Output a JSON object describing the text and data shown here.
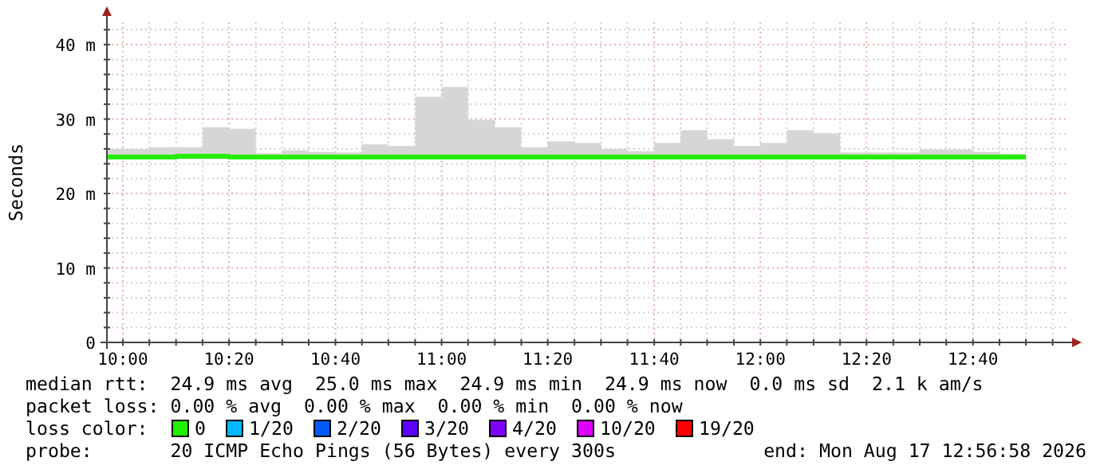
{
  "chart_data": {
    "type": "step",
    "ylabel": "Seconds",
    "legend_title": "loss color:",
    "legend": "bottom",
    "grid": true,
    "xlim": [
      9.95,
      12.958
    ],
    "ylim": [
      0,
      43
    ],
    "xticks": [
      {
        "value": 10,
        "label": "10:00"
      },
      {
        "value": 10.083,
        "label": null
      },
      {
        "value": 10.167,
        "label": null
      },
      {
        "value": 10.25,
        "label": null
      },
      {
        "value": 10.333,
        "label": "10:20"
      },
      {
        "value": 10.417,
        "label": null
      },
      {
        "value": 10.5,
        "label": null
      },
      {
        "value": 10.583,
        "label": null
      },
      {
        "value": 10.667,
        "label": "10:40"
      },
      {
        "value": 10.75,
        "label": null
      },
      {
        "value": 10.833,
        "label": null
      },
      {
        "value": 10.917,
        "label": null
      },
      {
        "value": 11,
        "label": "11:00"
      },
      {
        "value": 11.083,
        "label": null
      },
      {
        "value": 11.167,
        "label": null
      },
      {
        "value": 11.25,
        "label": null
      },
      {
        "value": 11.333,
        "label": "11:20"
      },
      {
        "value": 11.417,
        "label": null
      },
      {
        "value": 11.5,
        "label": null
      },
      {
        "value": 11.583,
        "label": null
      },
      {
        "value": 11.667,
        "label": "11:40"
      },
      {
        "value": 11.75,
        "label": null
      },
      {
        "value": 11.833,
        "label": null
      },
      {
        "value": 11.917,
        "label": null
      },
      {
        "value": 12,
        "label": "12:00"
      },
      {
        "value": 12.083,
        "label": null
      },
      {
        "value": 12.167,
        "label": null
      },
      {
        "value": 12.25,
        "label": null
      },
      {
        "value": 12.333,
        "label": "12:20"
      },
      {
        "value": 12.417,
        "label": null
      },
      {
        "value": 12.5,
        "label": null
      },
      {
        "value": 12.583,
        "label": null
      },
      {
        "value": 12.667,
        "label": "12:40"
      },
      {
        "value": 12.75,
        "label": null
      },
      {
        "value": 12.833,
        "label": null
      },
      {
        "value": 12.917,
        "label": null
      }
    ],
    "yticks": [
      0,
      {
        "value": 2,
        "label": null
      },
      {
        "value": 4,
        "label": null
      },
      {
        "value": 6,
        "label": null
      },
      {
        "value": 8,
        "label": null
      },
      {
        "value": 10,
        "label": "10 m"
      },
      {
        "value": 12,
        "label": null
      },
      {
        "value": 14,
        "label": null
      },
      {
        "value": 16,
        "label": null
      },
      {
        "value": 18,
        "label": null
      },
      {
        "value": 20,
        "label": "20 m"
      },
      {
        "value": 22,
        "label": null
      },
      {
        "value": 24,
        "label": null
      },
      {
        "value": 26,
        "label": null
      },
      {
        "value": 28,
        "label": null
      },
      {
        "value": 30,
        "label": "30 m"
      },
      {
        "value": 32,
        "label": null
      },
      {
        "value": 34,
        "label": null
      },
      {
        "value": 36,
        "label": null
      },
      {
        "value": 38,
        "label": null
      },
      {
        "value": 40,
        "label": "40 m"
      },
      {
        "value": 42,
        "label": null
      }
    ],
    "x": [
      9.95,
      10.083,
      10.167,
      10.25,
      10.333,
      10.417,
      10.5,
      10.583,
      10.667,
      10.75,
      10.833,
      10.917,
      11,
      11.083,
      11.167,
      11.25,
      11.333,
      11.417,
      11.5,
      11.583,
      11.667,
      11.75,
      11.833,
      11.917,
      12,
      12.083,
      12.167,
      12.25,
      12.333,
      12.417,
      12.5,
      12.583,
      12.667,
      12.75,
      12.833
    ],
    "series": [
      {
        "name": "0",
        "color": "#22ee00",
        "values": [
          24.9,
          24.9,
          25.0,
          25.0,
          24.9,
          24.9,
          24.9,
          24.9,
          24.9,
          24.9,
          24.9,
          24.9,
          24.9,
          24.9,
          24.9,
          24.9,
          24.9,
          24.9,
          24.9,
          24.9,
          24.9,
          24.9,
          24.9,
          24.9,
          24.9,
          24.9,
          24.9,
          24.9,
          24.9,
          24.9,
          24.9,
          24.9,
          24.9,
          24.9,
          24.9
        ],
        "lower": [
          24.6,
          24.6,
          24.6,
          24.6,
          24.6,
          24.6,
          24.6,
          24.6,
          24.6,
          24.6,
          24.6,
          24.6,
          24.6,
          24.6,
          24.6,
          24.6,
          24.6,
          24.6,
          24.6,
          24.6,
          24.6,
          24.6,
          24.6,
          24.6,
          24.6,
          24.6,
          24.6,
          24.6,
          24.6,
          24.6,
          24.6,
          24.6,
          24.6,
          24.6,
          24.6
        ],
        "upper": [
          26.0,
          26.2,
          26.2,
          28.9,
          28.7,
          25.4,
          25.8,
          25.6,
          25.5,
          26.6,
          26.4,
          33.0,
          34.3,
          29.9,
          28.9,
          26.2,
          27.0,
          26.8,
          26.0,
          25.7,
          26.8,
          28.5,
          27.3,
          26.4,
          26.8,
          28.5,
          28.1,
          25.5,
          25.5,
          25.5,
          25.9,
          25.9,
          25.6,
          25.3,
          25.3
        ]
      },
      {
        "name": "1/20",
        "color": "#00b8ff",
        "values": [
          null,
          null,
          null,
          null,
          null,
          null,
          null,
          null,
          null,
          null,
          null,
          null,
          null,
          null,
          null,
          null,
          null,
          null,
          null,
          null,
          null,
          null,
          null,
          null,
          null,
          null,
          null,
          null,
          null,
          null,
          null,
          null,
          null,
          null,
          null
        ]
      },
      {
        "name": "2/20",
        "color": "#0059ff",
        "values": [
          null,
          null,
          null,
          null,
          null,
          null,
          null,
          null,
          null,
          null,
          null,
          null,
          null,
          null,
          null,
          null,
          null,
          null,
          null,
          null,
          null,
          null,
          null,
          null,
          null,
          null,
          null,
          null,
          null,
          null,
          null,
          null,
          null,
          null,
          null
        ]
      },
      {
        "name": "3/20",
        "color": "#5e00ff",
        "values": [
          null,
          null,
          null,
          null,
          null,
          null,
          null,
          null,
          null,
          null,
          null,
          null,
          null,
          null,
          null,
          null,
          null,
          null,
          null,
          null,
          null,
          null,
          null,
          null,
          null,
          null,
          null,
          null,
          null,
          null,
          null,
          null,
          null,
          null,
          null
        ]
      },
      {
        "name": "4/20",
        "color": "#7e00ff",
        "values": [
          null,
          null,
          null,
          null,
          null,
          null,
          null,
          null,
          null,
          null,
          null,
          null,
          null,
          null,
          null,
          null,
          null,
          null,
          null,
          null,
          null,
          null,
          null,
          null,
          null,
          null,
          null,
          null,
          null,
          null,
          null,
          null,
          null,
          null,
          null
        ]
      },
      {
        "name": "10/20",
        "color": "#dd00ff",
        "values": [
          null,
          null,
          null,
          null,
          null,
          null,
          null,
          null,
          null,
          null,
          null,
          null,
          null,
          null,
          null,
          null,
          null,
          null,
          null,
          null,
          null,
          null,
          null,
          null,
          null,
          null,
          null,
          null,
          null,
          null,
          null,
          null,
          null,
          null,
          null
        ]
      },
      {
        "name": "19/20",
        "color": "#ff0000",
        "values": [
          null,
          null,
          null,
          null,
          null,
          null,
          null,
          null,
          null,
          null,
          null,
          null,
          null,
          null,
          null,
          null,
          null,
          null,
          null,
          null,
          null,
          null,
          null,
          null,
          null,
          null,
          null,
          null,
          null,
          null,
          null,
          null,
          null,
          null,
          null
        ]
      }
    ],
    "annotations": [
      "median rtt:  24.9 ms avg  25.0 ms max  24.9 ms min  24.9 ms now  0.0 ms sd  2.1 k am/s",
      "packet loss: 0.00 % avg  0.00 % max  0.00 % min  0.00 % now",
      "probe:       20 ICMP Echo Pings (56 Bytes) every 300s",
      "end: Mon Aug 17 12:56:58 2026"
    ]
  }
}
